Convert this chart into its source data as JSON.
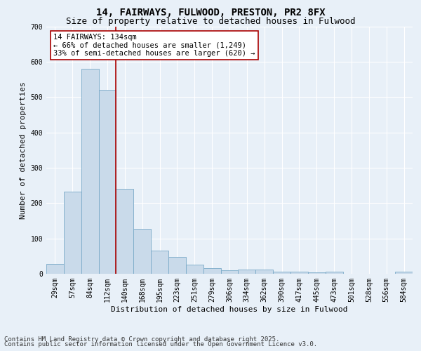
{
  "title": "14, FAIRWAYS, FULWOOD, PRESTON, PR2 8FX",
  "subtitle": "Size of property relative to detached houses in Fulwood",
  "xlabel": "Distribution of detached houses by size in Fulwood",
  "ylabel": "Number of detached properties",
  "categories": [
    "29sqm",
    "57sqm",
    "84sqm",
    "112sqm",
    "140sqm",
    "168sqm",
    "195sqm",
    "223sqm",
    "251sqm",
    "279sqm",
    "306sqm",
    "334sqm",
    "362sqm",
    "390sqm",
    "417sqm",
    "445sqm",
    "473sqm",
    "501sqm",
    "528sqm",
    "556sqm",
    "584sqm"
  ],
  "values": [
    28,
    232,
    580,
    520,
    240,
    128,
    65,
    48,
    25,
    15,
    10,
    12,
    12,
    5,
    5,
    3,
    5,
    0,
    0,
    0,
    5
  ],
  "bar_color": "#c9daea",
  "bar_edge_color": "#7aaac8",
  "vline_color": "#aa0000",
  "vline_x": 3.5,
  "annotation_text": "14 FAIRWAYS: 134sqm\n← 66% of detached houses are smaller (1,249)\n33% of semi-detached houses are larger (620) →",
  "annotation_box_facecolor": "#ffffff",
  "annotation_box_edgecolor": "#aa0000",
  "ylim": [
    0,
    700
  ],
  "yticks": [
    0,
    100,
    200,
    300,
    400,
    500,
    600,
    700
  ],
  "background_color": "#e8f0f8",
  "plot_bg_color": "#e8f0f8",
  "footer_line1": "Contains HM Land Registry data © Crown copyright and database right 2025.",
  "footer_line2": "Contains public sector information licensed under the Open Government Licence v3.0.",
  "title_fontsize": 10,
  "subtitle_fontsize": 9,
  "xlabel_fontsize": 8,
  "ylabel_fontsize": 8,
  "tick_fontsize": 7,
  "annotation_fontsize": 7.5,
  "footer_fontsize": 6.5,
  "grid_color": "#ffffff"
}
